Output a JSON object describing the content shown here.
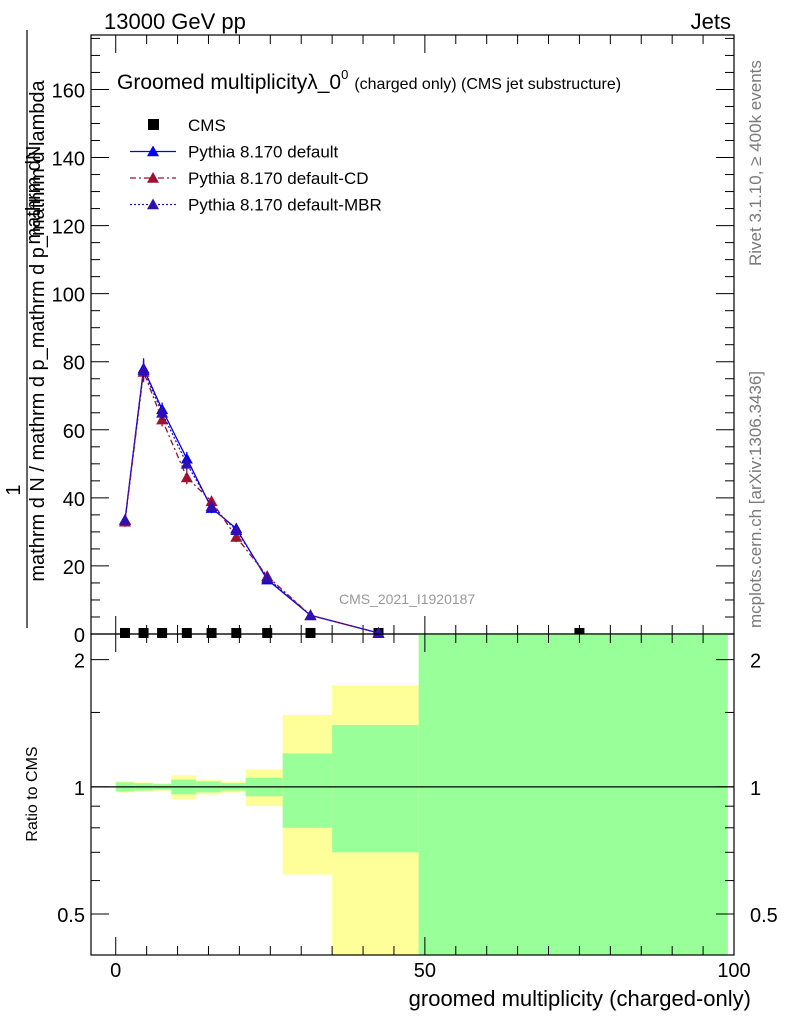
{
  "header": {
    "energy": "13000 GeV pp",
    "category": "Jets"
  },
  "side_labels": {
    "rivet": "Rivet 3.1.10, ≥ 400k events",
    "mcplots": "mcplots.cern.ch [arXiv:1306.3436]"
  },
  "watermark": "CMS_2021_I1920187",
  "chart_data": [
    {
      "type": "line",
      "title_main": "Groomed multiplicityλ_0",
      "title_sup": "0",
      "title_small": "(charged only) (CMS jet substructure)",
      "xlabel": "groomed multiplicity (charged-only)",
      "ylabel_num": "1",
      "ylabel_den": "mathrm d N / mathrm d p_mathrm d p_mathrm d lambda",
      "ylabel_top_num": "mathrm dN",
      "ylabel_top_den": "",
      "xlim": [
        -4,
        100
      ],
      "ylim": [
        0,
        176
      ],
      "yticks": [
        0,
        20,
        40,
        60,
        80,
        100,
        120,
        140,
        160
      ],
      "xticks": [
        0,
        50,
        100
      ],
      "legend": [
        "CMS",
        "Pythia 8.170 default",
        "Pythia 8.170 default-CD",
        "Pythia 8.170 default-MBR"
      ],
      "series": [
        {
          "name": "CMS",
          "color": "#000000",
          "marker": "square",
          "x": [
            1.5,
            4.5,
            7.5,
            11.5,
            15.5,
            19.5,
            24.5,
            31.5,
            42.5,
            75
          ],
          "values": [
            0.3,
            0.3,
            0.3,
            0.3,
            0.3,
            0.3,
            0.3,
            0.3,
            0.3,
            0.3
          ]
        },
        {
          "name": "Pythia 8.170 default",
          "color": "#0000ff",
          "marker": "triangle",
          "dash": "",
          "x": [
            1.5,
            4.5,
            7.5,
            11.5,
            15.5,
            19.5,
            24.5,
            31.5,
            42.5
          ],
          "values": [
            33.5,
            78,
            66,
            51.5,
            37,
            31,
            16,
            5.5,
            0.3
          ],
          "err": [
            1.5,
            3,
            2,
            2,
            1.5,
            1.5,
            1,
            0.5,
            0.1
          ]
        },
        {
          "name": "Pythia 8.170 default-CD",
          "color": "#a01030",
          "marker": "triangle",
          "dash": "6,3,2,3",
          "x": [
            1.5,
            4.5,
            7.5,
            11.5,
            15.5,
            19.5,
            24.5,
            31.5,
            42.5
          ],
          "values": [
            33,
            77,
            63,
            46,
            39,
            28.5,
            17,
            5.5,
            0.3
          ],
          "err": [
            1.5,
            3,
            2,
            2,
            1.5,
            1.5,
            1,
            0.5,
            0.1
          ]
        },
        {
          "name": "Pythia 8.170 default-MBR",
          "color": "#3010b0",
          "marker": "triangle",
          "dash": "2,2",
          "x": [
            1.5,
            4.5,
            7.5,
            11.5,
            15.5,
            19.5,
            24.5,
            31.5,
            42.5
          ],
          "values": [
            33.5,
            77.5,
            65,
            50,
            37.5,
            30.5,
            16.5,
            5.5,
            0.3
          ],
          "err": [
            1.5,
            3,
            2,
            2,
            1.5,
            1.5,
            1,
            0.5,
            0.1
          ]
        }
      ]
    },
    {
      "type": "area",
      "ylabel": "Ratio to CMS",
      "ylim": [
        0.4,
        2.3
      ],
      "yticks": [
        0.5,
        1,
        2
      ],
      "reference": 1,
      "bins_edges": [
        0,
        3,
        6,
        9,
        13,
        17,
        21,
        27,
        35,
        49,
        99
      ],
      "uncertainty_stat": [
        [
          0.975,
          1.025
        ],
        [
          0.98,
          1.02
        ],
        [
          0.985,
          1.015
        ],
        [
          0.96,
          1.04
        ],
        [
          0.97,
          1.03
        ],
        [
          0.98,
          1.02
        ],
        [
          0.95,
          1.05
        ],
        [
          0.8,
          1.2
        ],
        [
          0.7,
          1.4
        ],
        [
          0.35,
          2.4
        ]
      ],
      "uncertainty_total": [
        [
          0.97,
          1.03
        ],
        [
          0.975,
          1.025
        ],
        [
          0.98,
          1.02
        ],
        [
          0.935,
          1.065
        ],
        [
          0.96,
          1.04
        ],
        [
          0.97,
          1.03
        ],
        [
          0.9,
          1.1
        ],
        [
          0.62,
          1.48
        ],
        [
          0.35,
          1.74
        ],
        [
          0.35,
          2.4
        ]
      ],
      "colors": {
        "stat": "#99ff99",
        "total": "#ffff99"
      }
    }
  ]
}
